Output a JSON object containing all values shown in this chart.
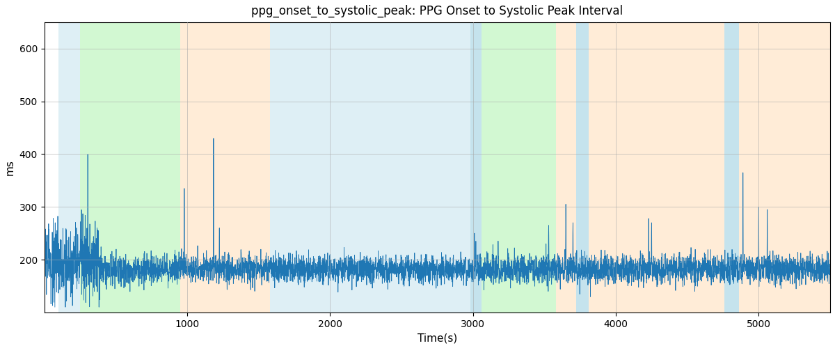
{
  "title": "ppg_onset_to_systolic_peak: PPG Onset to Systolic Peak Interval",
  "xlabel": "Time(s)",
  "ylabel": "ms",
  "ylim": [
    100,
    650
  ],
  "xlim": [
    0,
    5500
  ],
  "line_color": "#1f77b4",
  "line_width": 0.6,
  "colored_bands": [
    {
      "xmin": 100,
      "xmax": 250,
      "color": "#add8e6",
      "alpha": 0.4
    },
    {
      "xmin": 250,
      "xmax": 950,
      "color": "#90ee90",
      "alpha": 0.4
    },
    {
      "xmin": 950,
      "xmax": 1580,
      "color": "#ffdab0",
      "alpha": 0.5
    },
    {
      "xmin": 1580,
      "xmax": 2980,
      "color": "#add8e6",
      "alpha": 0.4
    },
    {
      "xmin": 2980,
      "xmax": 3060,
      "color": "#add8e6",
      "alpha": 0.7
    },
    {
      "xmin": 3060,
      "xmax": 3580,
      "color": "#90ee90",
      "alpha": 0.4
    },
    {
      "xmin": 3580,
      "xmax": 3720,
      "color": "#ffdab0",
      "alpha": 0.5
    },
    {
      "xmin": 3720,
      "xmax": 3810,
      "color": "#add8e6",
      "alpha": 0.7
    },
    {
      "xmin": 3810,
      "xmax": 4760,
      "color": "#ffdab0",
      "alpha": 0.5
    },
    {
      "xmin": 4760,
      "xmax": 4860,
      "color": "#add8e6",
      "alpha": 0.7
    },
    {
      "xmin": 4860,
      "xmax": 5500,
      "color": "#ffdab0",
      "alpha": 0.5
    }
  ],
  "yticks": [
    200,
    300,
    400,
    500,
    600
  ],
  "xticks": [
    1000,
    2000,
    3000,
    4000,
    5000
  ],
  "signal_mean": 182,
  "signal_std": 14,
  "n_points": 5400,
  "seed": 0
}
